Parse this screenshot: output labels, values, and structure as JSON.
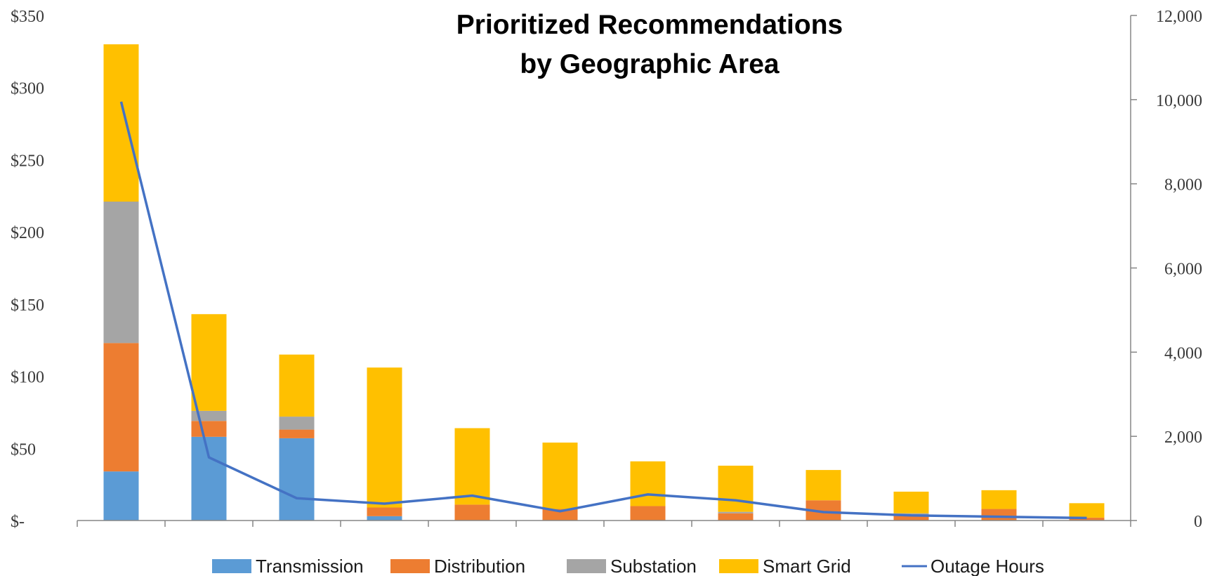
{
  "chart_data": {
    "type": "bar",
    "stacked": true,
    "title": [
      "Prioritized Recommendations",
      "by Geographic Area"
    ],
    "categories": [
      "",
      "",
      "",
      "",
      "",
      "",
      "",
      "",
      "",
      "",
      "",
      ""
    ],
    "y_left": {
      "range": [
        0,
        350
      ],
      "ticks": [
        0,
        50,
        100,
        150,
        200,
        250,
        300,
        350
      ],
      "tick_labels": [
        "$-",
        "$50",
        "$100",
        "$150",
        "$200",
        "$250",
        "$300",
        "$350"
      ]
    },
    "y_right": {
      "range": [
        0,
        12000
      ],
      "ticks": [
        0,
        2000,
        4000,
        6000,
        8000,
        10000,
        12000
      ],
      "tick_labels": [
        "0",
        "2,000",
        "4,000",
        "6,000",
        "8,000",
        "10,000",
        "12,000"
      ]
    },
    "series": [
      {
        "name": "Transmission",
        "type": "bar",
        "axis": "left",
        "color": "#5B9BD5",
        "values": [
          34,
          58,
          57,
          3,
          0,
          0,
          0,
          0,
          0,
          0,
          0,
          0
        ]
      },
      {
        "name": "Distribution",
        "type": "bar",
        "axis": "left",
        "color": "#ED7D31",
        "values": [
          89,
          11,
          6,
          6,
          11,
          8,
          10,
          5,
          14,
          4,
          8,
          2
        ]
      },
      {
        "name": "Substation",
        "type": "bar",
        "axis": "left",
        "color": "#A5A5A5",
        "values": [
          98,
          7,
          9,
          0,
          0,
          0,
          0,
          1,
          0,
          1,
          0,
          0
        ]
      },
      {
        "name": "Smart Grid",
        "type": "bar",
        "axis": "left",
        "color": "#FFC000",
        "values": [
          109,
          67,
          43,
          97,
          53,
          46,
          31,
          32,
          21,
          15,
          13,
          10
        ]
      },
      {
        "name": "Outage Hours",
        "type": "line",
        "axis": "right",
        "color": "#4472C4",
        "values": [
          9950,
          1500,
          530,
          400,
          590,
          220,
          620,
          480,
          200,
          120,
          90,
          60
        ]
      }
    ],
    "legend": "bottom",
    "grid": false
  }
}
